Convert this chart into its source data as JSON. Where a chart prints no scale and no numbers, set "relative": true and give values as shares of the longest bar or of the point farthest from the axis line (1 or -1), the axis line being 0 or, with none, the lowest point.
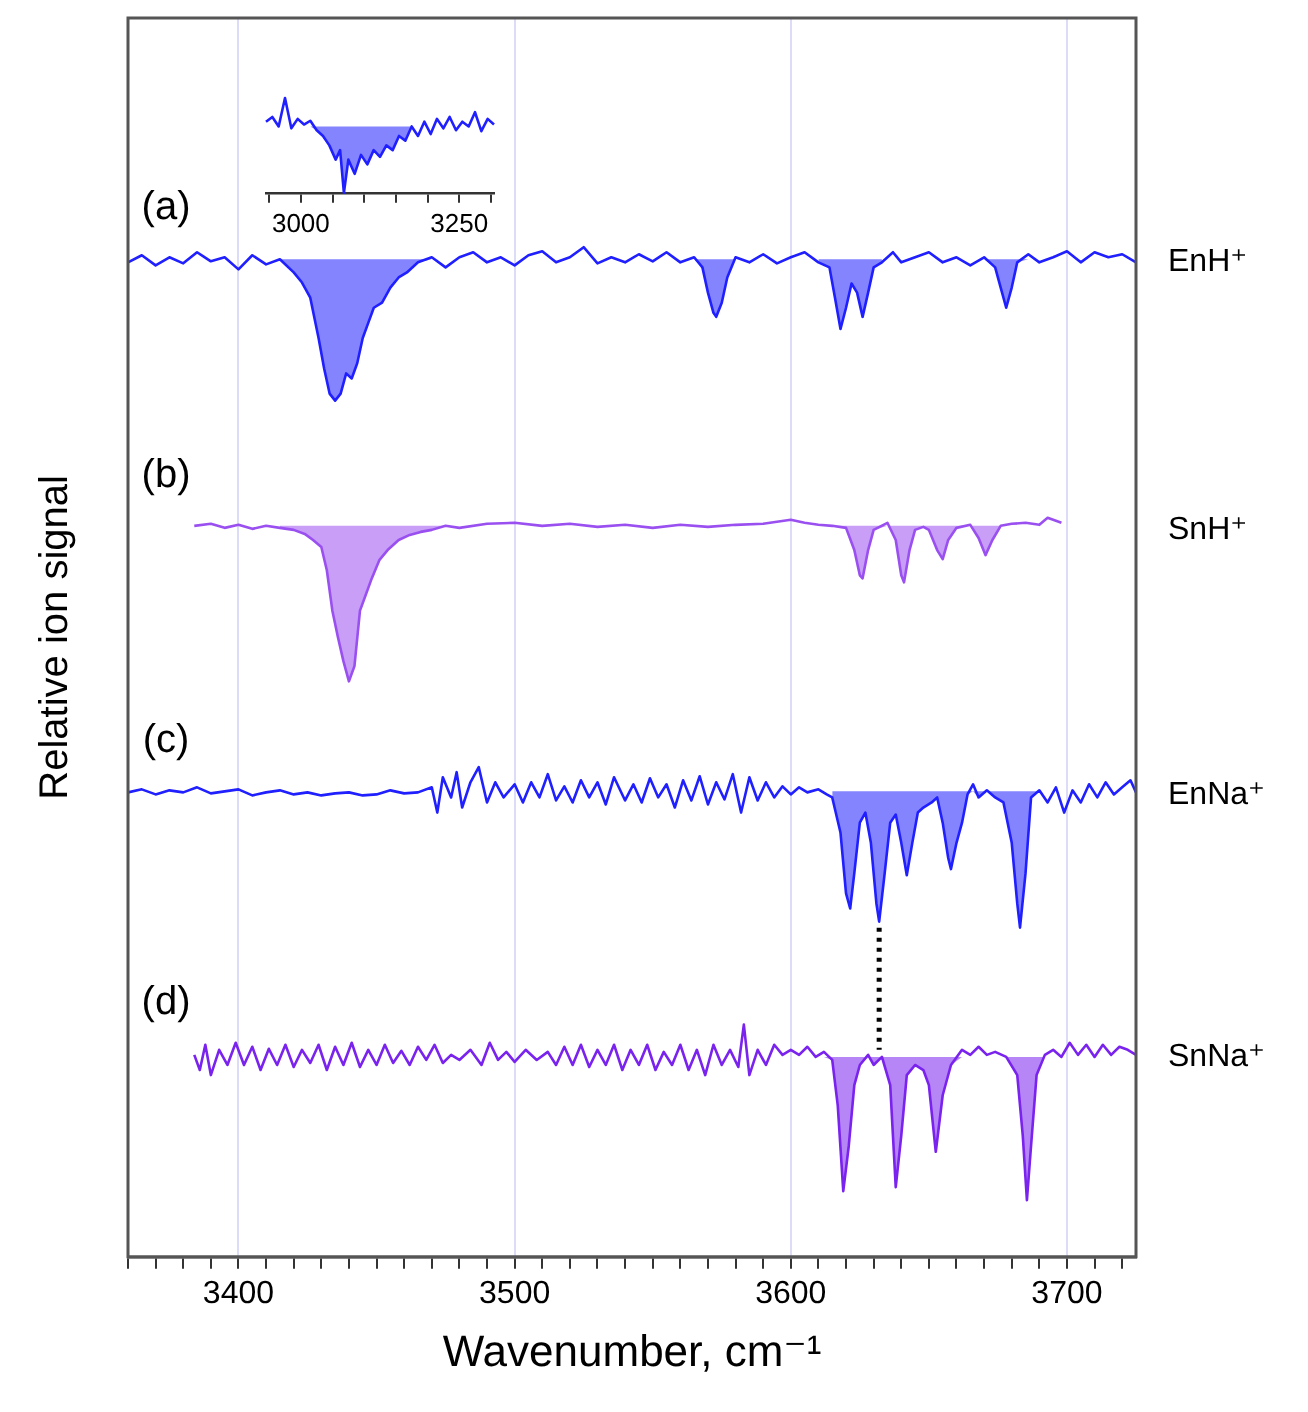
{
  "chart_data": [
    {
      "type": "line",
      "relative": true,
      "xlabel": "Wavenumber, cm⁻¹",
      "ylabel": "Relative ion signal",
      "xlim": [
        3360,
        3725
      ],
      "xticks": [
        {
          "value": 3360,
          "label": null
        },
        {
          "value": 3370,
          "label": null
        },
        {
          "value": 3380,
          "label": null
        },
        {
          "value": 3390,
          "label": null
        },
        3400,
        {
          "value": 3410,
          "label": null
        },
        {
          "value": 3420,
          "label": null
        },
        {
          "value": 3430,
          "label": null
        },
        {
          "value": 3440,
          "label": null
        },
        {
          "value": 3450,
          "label": null
        },
        {
          "value": 3460,
          "label": null
        },
        {
          "value": 3470,
          "label": null
        },
        {
          "value": 3480,
          "label": null
        },
        {
          "value": 3490,
          "label": null
        },
        3500,
        {
          "value": 3510,
          "label": null
        },
        {
          "value": 3520,
          "label": null
        },
        {
          "value": 3530,
          "label": null
        },
        {
          "value": 3540,
          "label": null
        },
        {
          "value": 3550,
          "label": null
        },
        {
          "value": 3560,
          "label": null
        },
        {
          "value": 3570,
          "label": null
        },
        {
          "value": 3580,
          "label": null
        },
        {
          "value": 3590,
          "label": null
        },
        3600,
        {
          "value": 3610,
          "label": null
        },
        {
          "value": 3620,
          "label": null
        },
        {
          "value": 3630,
          "label": null
        },
        {
          "value": 3640,
          "label": null
        },
        {
          "value": 3650,
          "label": null
        },
        {
          "value": 3660,
          "label": null
        },
        {
          "value": 3670,
          "label": null
        },
        {
          "value": 3680,
          "label": null
        },
        {
          "value": 3690,
          "label": null
        },
        3700,
        {
          "value": 3710,
          "label": null
        },
        {
          "value": 3720,
          "label": null
        }
      ],
      "grid": "x",
      "legend": false,
      "marker": "none",
      "annotations": [
        "(a)",
        "(b)",
        "(c)",
        "(d)"
      ],
      "series": [
        {
          "name": "EnH⁺",
          "type": "line",
          "color": "#1f1fff",
          "x": [
            3360,
            3365,
            3370,
            3375,
            3380,
            3385,
            3390,
            3395,
            3400,
            3405,
            3410,
            3415,
            3420,
            3423,
            3426,
            3429,
            3431,
            3433,
            3435,
            3437,
            3439,
            3441,
            3443,
            3445,
            3447,
            3449,
            3452,
            3455,
            3458,
            3461,
            3465,
            3470,
            3475,
            3480,
            3485,
            3490,
            3495,
            3500,
            3505,
            3510,
            3515,
            3520,
            3525,
            3530,
            3535,
            3540,
            3545,
            3550,
            3555,
            3560,
            3565,
            3568,
            3570,
            3572,
            3573,
            3575,
            3577,
            3580,
            3585,
            3590,
            3595,
            3600,
            3605,
            3610,
            3614,
            3616,
            3618,
            3620,
            3622,
            3624,
            3626,
            3628,
            3630,
            3633,
            3637,
            3640,
            3645,
            3650,
            3655,
            3660,
            3665,
            3670,
            3674,
            3676,
            3678,
            3680,
            3682,
            3686,
            3690,
            3695,
            3700,
            3705,
            3710,
            3715,
            3720,
            3725
          ],
          "values": [
            0.985,
            0.992,
            0.982,
            0.99,
            0.984,
            0.995,
            0.986,
            0.99,
            0.978,
            0.992,
            0.983,
            0.988,
            0.975,
            0.965,
            0.95,
            0.91,
            0.88,
            0.855,
            0.848,
            0.855,
            0.875,
            0.87,
            0.885,
            0.91,
            0.925,
            0.94,
            0.945,
            0.96,
            0.97,
            0.975,
            0.985,
            0.99,
            0.98,
            0.99,
            0.995,
            0.985,
            0.99,
            0.982,
            0.992,
            0.996,
            0.985,
            0.99,
            1.0,
            0.984,
            0.99,
            0.985,
            0.993,
            0.986,
            0.995,
            0.985,
            0.99,
            0.98,
            0.955,
            0.935,
            0.931,
            0.945,
            0.97,
            0.99,
            0.985,
            0.993,
            0.984,
            0.99,
            0.995,
            0.985,
            0.98,
            0.95,
            0.919,
            0.94,
            0.964,
            0.955,
            0.931,
            0.955,
            0.98,
            0.985,
            0.995,
            0.985,
            0.99,
            0.995,
            0.985,
            0.99,
            0.982,
            0.99,
            0.98,
            0.96,
            0.94,
            0.96,
            0.985,
            0.993,
            0.985,
            0.99,
            0.996,
            0.985,
            0.995,
            0.99,
            0.993,
            0.985
          ],
          "lower": [
            null,
            null,
            null,
            null,
            null,
            null,
            null,
            null,
            null,
            null,
            null,
            0.988,
            0.975,
            0.965,
            0.95,
            0.91,
            0.88,
            0.855,
            0.848,
            0.855,
            0.875,
            0.87,
            0.885,
            0.91,
            0.925,
            0.94,
            0.945,
            0.96,
            0.97,
            0.975,
            0.985,
            0.988,
            null,
            null,
            null,
            null,
            null,
            null,
            null,
            null,
            null,
            null,
            null,
            null,
            null,
            null,
            null,
            null,
            null,
            null,
            0.988,
            0.98,
            0.955,
            0.935,
            0.931,
            0.945,
            0.97,
            0.988,
            null,
            null,
            null,
            null,
            null,
            0.985,
            0.98,
            0.95,
            0.919,
            0.94,
            0.964,
            0.955,
            0.931,
            0.955,
            0.98,
            0.985,
            null,
            null,
            null,
            null,
            null,
            null,
            null,
            0.988,
            0.98,
            0.96,
            0.94,
            0.96,
            0.985,
            0.988,
            null,
            null,
            null,
            null,
            null,
            null,
            null,
            null
          ],
          "upper": [
            null,
            null,
            null,
            null,
            null,
            null,
            null,
            null,
            null,
            null,
            null,
            0.988,
            0.988,
            0.988,
            0.988,
            0.988,
            0.988,
            0.988,
            0.988,
            0.988,
            0.988,
            0.988,
            0.988,
            0.988,
            0.988,
            0.988,
            0.988,
            0.988,
            0.988,
            0.988,
            0.988,
            0.988,
            null,
            null,
            null,
            null,
            null,
            null,
            null,
            null,
            null,
            null,
            null,
            null,
            null,
            null,
            null,
            null,
            null,
            null,
            0.988,
            0.988,
            0.988,
            0.988,
            0.988,
            0.988,
            0.988,
            0.988,
            null,
            null,
            null,
            null,
            null,
            0.988,
            0.988,
            0.988,
            0.988,
            0.988,
            0.988,
            0.988,
            0.988,
            0.988,
            0.988,
            0.988,
            null,
            null,
            null,
            null,
            null,
            null,
            null,
            0.988,
            0.988,
            0.988,
            0.988,
            0.988,
            0.988,
            0.988,
            null,
            null,
            null,
            null,
            null,
            null,
            null,
            null
          ]
        },
        {
          "name": "SnH⁺",
          "type": "line",
          "color": "#9a4ff0",
          "x": [
            3384,
            3390,
            3395,
            3400,
            3405,
            3410,
            3415,
            3420,
            3424,
            3427,
            3430,
            3432,
            3434,
            3436,
            3438,
            3440,
            3442,
            3444,
            3446,
            3448,
            3451,
            3454,
            3458,
            3462,
            3466,
            3470,
            3475,
            3480,
            3490,
            3500,
            3510,
            3520,
            3530,
            3540,
            3550,
            3560,
            3570,
            3580,
            3590,
            3600,
            3605,
            3610,
            3615,
            3620,
            3623,
            3625,
            3626,
            3628,
            3630,
            3635,
            3638,
            3640,
            3641,
            3643,
            3645,
            3648,
            3650,
            3653,
            3655,
            3657,
            3660,
            3665,
            3668,
            3670.5,
            3673,
            3676,
            3680,
            3685,
            3690,
            3693,
            3698
          ],
          "values": [
            0.724,
            0.726,
            0.722,
            0.725,
            0.721,
            0.724,
            0.722,
            0.72,
            0.716,
            0.71,
            0.703,
            0.68,
            0.64,
            0.614,
            0.59,
            0.57,
            0.585,
            0.64,
            0.655,
            0.67,
            0.69,
            0.7,
            0.71,
            0.715,
            0.718,
            0.72,
            0.724,
            0.722,
            0.726,
            0.727,
            0.724,
            0.726,
            0.723,
            0.725,
            0.722,
            0.725,
            0.723,
            0.725,
            0.726,
            0.73,
            0.727,
            0.725,
            0.724,
            0.722,
            0.7,
            0.675,
            0.672,
            0.7,
            0.72,
            0.727,
            0.71,
            0.675,
            0.668,
            0.7,
            0.72,
            0.723,
            0.72,
            0.7,
            0.691,
            0.71,
            0.722,
            0.725,
            0.712,
            0.695,
            0.71,
            0.724,
            0.726,
            0.727,
            0.725,
            0.732,
            0.727
          ],
          "lower": [
            null,
            null,
            null,
            null,
            null,
            null,
            0.722,
            0.72,
            0.716,
            0.71,
            0.703,
            0.68,
            0.64,
            0.614,
            0.59,
            0.57,
            0.585,
            0.64,
            0.655,
            0.67,
            0.69,
            0.7,
            0.71,
            0.715,
            0.718,
            0.72,
            0.724,
            null,
            null,
            null,
            null,
            null,
            null,
            null,
            null,
            null,
            null,
            null,
            null,
            null,
            null,
            null,
            0.724,
            0.722,
            0.7,
            0.675,
            0.672,
            0.7,
            0.72,
            0.724,
            0.71,
            0.675,
            0.668,
            0.7,
            0.72,
            0.723,
            0.72,
            0.7,
            0.691,
            0.71,
            0.722,
            0.724,
            0.712,
            0.695,
            0.71,
            0.724,
            null,
            null,
            null,
            null,
            null
          ],
          "upper": [
            null,
            null,
            null,
            null,
            null,
            null,
            0.724,
            0.724,
            0.724,
            0.724,
            0.724,
            0.724,
            0.724,
            0.724,
            0.724,
            0.724,
            0.724,
            0.724,
            0.724,
            0.724,
            0.724,
            0.724,
            0.724,
            0.724,
            0.724,
            0.724,
            0.724,
            null,
            null,
            null,
            null,
            null,
            null,
            null,
            null,
            null,
            null,
            null,
            null,
            null,
            null,
            null,
            0.724,
            0.724,
            0.724,
            0.724,
            0.724,
            0.724,
            0.724,
            0.724,
            0.724,
            0.724,
            0.724,
            0.724,
            0.724,
            0.724,
            0.724,
            0.724,
            0.724,
            0.724,
            0.724,
            0.724,
            0.724,
            0.724,
            0.724,
            0.724,
            null,
            null,
            null,
            null,
            null
          ]
        },
        {
          "name": "EnNa⁺",
          "type": "line",
          "color": "#1f1fff",
          "x": [
            3360,
            3365,
            3370,
            3375,
            3380,
            3385,
            3390,
            3395,
            3400,
            3405,
            3410,
            3415,
            3420,
            3425,
            3430,
            3435,
            3440,
            3445,
            3450,
            3455,
            3460,
            3465,
            3470,
            3472,
            3474,
            3477,
            3479,
            3481,
            3484,
            3487,
            3490,
            3493,
            3496,
            3500,
            3503,
            3506,
            3509,
            3512,
            3515,
            3518,
            3521,
            3524,
            3527,
            3530,
            3533,
            3536,
            3540,
            3543,
            3546,
            3549,
            3552,
            3555,
            3558,
            3561,
            3564,
            3567,
            3570,
            3573,
            3576,
            3579,
            3582,
            3585,
            3588,
            3591,
            3594,
            3597,
            3600,
            3603,
            3606,
            3610,
            3613,
            3615,
            3618,
            3620,
            3621.5,
            3623,
            3625,
            3627,
            3629,
            3631,
            3632,
            3634,
            3636,
            3638,
            3640,
            3642,
            3644,
            3646,
            3648,
            3651,
            3653,
            3655,
            3657,
            3658,
            3660,
            3662,
            3664,
            3666,
            3668,
            3671,
            3674,
            3677,
            3680,
            3682,
            3683,
            3685,
            3687,
            3690,
            3693,
            3696,
            3699,
            3702,
            3705,
            3708,
            3711,
            3714,
            3717,
            3720,
            3723,
            3725
          ],
          "values": [
            0.46,
            0.463,
            0.458,
            0.462,
            0.46,
            0.465,
            0.459,
            0.461,
            0.463,
            0.457,
            0.46,
            0.462,
            0.458,
            0.46,
            0.457,
            0.459,
            0.46,
            0.457,
            0.458,
            0.462,
            0.459,
            0.46,
            0.465,
            0.44,
            0.475,
            0.455,
            0.48,
            0.445,
            0.47,
            0.485,
            0.45,
            0.47,
            0.455,
            0.468,
            0.45,
            0.47,
            0.455,
            0.478,
            0.452,
            0.466,
            0.45,
            0.472,
            0.455,
            0.47,
            0.448,
            0.475,
            0.452,
            0.468,
            0.45,
            0.474,
            0.455,
            0.468,
            0.445,
            0.472,
            0.452,
            0.476,
            0.448,
            0.47,
            0.453,
            0.478,
            0.44,
            0.475,
            0.452,
            0.47,
            0.455,
            0.466,
            0.458,
            0.465,
            0.46,
            0.463,
            0.458,
            0.455,
            0.42,
            0.36,
            0.345,
            0.38,
            0.43,
            0.44,
            0.41,
            0.35,
            0.332,
            0.38,
            0.43,
            0.438,
            0.41,
            0.378,
            0.41,
            0.44,
            0.445,
            0.45,
            0.455,
            0.43,
            0.395,
            0.384,
            0.41,
            0.43,
            0.458,
            0.468,
            0.455,
            0.462,
            0.455,
            0.45,
            0.41,
            0.35,
            0.326,
            0.38,
            0.455,
            0.462,
            0.45,
            0.465,
            0.44,
            0.462,
            0.45,
            0.468,
            0.455,
            0.47,
            0.458,
            0.465,
            0.472,
            0.46
          ],
          "lower": [
            null,
            null,
            null,
            null,
            null,
            null,
            null,
            null,
            null,
            null,
            null,
            null,
            null,
            null,
            null,
            null,
            null,
            null,
            null,
            null,
            null,
            null,
            null,
            null,
            null,
            null,
            null,
            null,
            null,
            null,
            null,
            null,
            null,
            null,
            null,
            null,
            null,
            null,
            null,
            null,
            null,
            null,
            null,
            null,
            null,
            null,
            null,
            null,
            null,
            null,
            null,
            null,
            null,
            null,
            null,
            null,
            null,
            null,
            null,
            null,
            null,
            null,
            null,
            null,
            null,
            null,
            null,
            null,
            null,
            null,
            null,
            0.455,
            0.42,
            0.36,
            0.345,
            0.38,
            0.43,
            0.44,
            0.41,
            0.35,
            0.332,
            0.38,
            0.43,
            0.438,
            0.41,
            0.378,
            0.41,
            0.44,
            0.445,
            0.45,
            0.455,
            0.43,
            0.395,
            0.384,
            0.41,
            0.43,
            0.458,
            0.461,
            0.455,
            0.461,
            0.455,
            0.45,
            0.41,
            0.35,
            0.326,
            0.38,
            0.455,
            0.461,
            null,
            null,
            null,
            null,
            null,
            null,
            null,
            null,
            null,
            null,
            null,
            null
          ],
          "upper": [
            null,
            null,
            null,
            null,
            null,
            null,
            null,
            null,
            null,
            null,
            null,
            null,
            null,
            null,
            null,
            null,
            null,
            null,
            null,
            null,
            null,
            null,
            null,
            null,
            null,
            null,
            null,
            null,
            null,
            null,
            null,
            null,
            null,
            null,
            null,
            null,
            null,
            null,
            null,
            null,
            null,
            null,
            null,
            null,
            null,
            null,
            null,
            null,
            null,
            null,
            null,
            null,
            null,
            null,
            null,
            null,
            null,
            null,
            null,
            null,
            null,
            null,
            null,
            null,
            null,
            null,
            null,
            null,
            null,
            null,
            null,
            0.461,
            0.461,
            0.461,
            0.461,
            0.461,
            0.461,
            0.461,
            0.461,
            0.461,
            0.461,
            0.461,
            0.461,
            0.461,
            0.461,
            0.461,
            0.461,
            0.461,
            0.461,
            0.461,
            0.461,
            0.461,
            0.461,
            0.461,
            0.461,
            0.461,
            0.461,
            0.461,
            0.461,
            0.461,
            0.461,
            0.461,
            0.461,
            0.461,
            0.461,
            0.461,
            0.461,
            0.461,
            null,
            null,
            null,
            null,
            null,
            null,
            null,
            null,
            null,
            null,
            null,
            null
          ]
        },
        {
          "name": "SnNa⁺",
          "type": "line",
          "color": "#7a22ee",
          "x": [
            3384,
            3386,
            3388,
            3390,
            3393,
            3396,
            3399,
            3402,
            3405,
            3408,
            3411,
            3414,
            3417,
            3420,
            3423,
            3426,
            3429,
            3432,
            3435,
            3438,
            3441,
            3444,
            3447,
            3450,
            3453,
            3456,
            3459,
            3462,
            3465,
            3468,
            3471,
            3474,
            3477,
            3480,
            3484,
            3488,
            3491,
            3494,
            3497,
            3500,
            3504,
            3508,
            3512,
            3515,
            3518,
            3521,
            3524,
            3527,
            3530,
            3533,
            3536,
            3539,
            3542,
            3545,
            3548,
            3551,
            3554,
            3557,
            3560,
            3563,
            3566,
            3569,
            3572,
            3575,
            3578,
            3581,
            3583,
            3585,
            3588,
            3591,
            3594,
            3597,
            3600,
            3603,
            3606,
            3609,
            3612,
            3615,
            3617,
            3619,
            3621,
            3623,
            3625,
            3628,
            3630,
            3633,
            3636,
            3638,
            3640,
            3642,
            3645,
            3648,
            3650,
            3652.5,
            3655,
            3658,
            3662,
            3665,
            3668,
            3671,
            3674,
            3678,
            3682,
            3684,
            3685.5,
            3687,
            3689,
            3692,
            3695,
            3698,
            3701,
            3704,
            3707,
            3710,
            3713,
            3716,
            3719,
            3722,
            3725
          ],
          "values": [
            0.2,
            0.185,
            0.21,
            0.18,
            0.205,
            0.19,
            0.212,
            0.19,
            0.208,
            0.185,
            0.206,
            0.19,
            0.21,
            0.188,
            0.205,
            0.192,
            0.21,
            0.185,
            0.208,
            0.19,
            0.212,
            0.188,
            0.205,
            0.19,
            0.21,
            0.192,
            0.204,
            0.19,
            0.208,
            0.195,
            0.21,
            0.192,
            0.2,
            0.195,
            0.205,
            0.19,
            0.212,
            0.195,
            0.203,
            0.193,
            0.205,
            0.195,
            0.203,
            0.19,
            0.208,
            0.19,
            0.21,
            0.188,
            0.205,
            0.19,
            0.21,
            0.185,
            0.205,
            0.19,
            0.21,
            0.185,
            0.203,
            0.19,
            0.21,
            0.185,
            0.205,
            0.18,
            0.21,
            0.19,
            0.205,
            0.188,
            0.23,
            0.18,
            0.205,
            0.19,
            0.21,
            0.2,
            0.205,
            0.2,
            0.208,
            0.198,
            0.203,
            0.195,
            0.15,
            0.065,
            0.11,
            0.17,
            0.19,
            0.2,
            0.19,
            0.198,
            0.17,
            0.069,
            0.12,
            0.18,
            0.19,
            0.185,
            0.17,
            0.104,
            0.16,
            0.19,
            0.205,
            0.2,
            0.208,
            0.2,
            0.203,
            0.198,
            0.18,
            0.12,
            0.056,
            0.11,
            0.18,
            0.2,
            0.205,
            0.198,
            0.212,
            0.2,
            0.21,
            0.198,
            0.21,
            0.2,
            0.208,
            0.205,
            0.2
          ],
          "lower": [
            null,
            null,
            null,
            null,
            null,
            null,
            null,
            null,
            null,
            null,
            null,
            null,
            null,
            null,
            null,
            null,
            null,
            null,
            null,
            null,
            null,
            null,
            null,
            null,
            null,
            null,
            null,
            null,
            null,
            null,
            null,
            null,
            null,
            null,
            null,
            null,
            null,
            null,
            null,
            null,
            null,
            null,
            null,
            null,
            null,
            null,
            null,
            null,
            null,
            null,
            null,
            null,
            null,
            null,
            null,
            null,
            null,
            null,
            null,
            null,
            null,
            null,
            null,
            null,
            null,
            null,
            null,
            null,
            null,
            null,
            null,
            null,
            null,
            null,
            null,
            null,
            0.198,
            0.195,
            0.15,
            0.065,
            0.11,
            0.17,
            0.19,
            0.198,
            0.19,
            0.198,
            0.17,
            0.069,
            0.12,
            0.18,
            0.19,
            0.185,
            0.17,
            0.104,
            0.16,
            0.19,
            0.198,
            null,
            null,
            null,
            null,
            0.198,
            0.18,
            0.12,
            0.056,
            0.11,
            0.18,
            0.198,
            null,
            null,
            null,
            null,
            null,
            null,
            null,
            null,
            null,
            null,
            null
          ],
          "upper": [
            null,
            null,
            null,
            null,
            null,
            null,
            null,
            null,
            null,
            null,
            null,
            null,
            null,
            null,
            null,
            null,
            null,
            null,
            null,
            null,
            null,
            null,
            null,
            null,
            null,
            null,
            null,
            null,
            null,
            null,
            null,
            null,
            null,
            null,
            null,
            null,
            null,
            null,
            null,
            null,
            null,
            null,
            null,
            null,
            null,
            null,
            null,
            null,
            null,
            null,
            null,
            null,
            null,
            null,
            null,
            null,
            null,
            null,
            null,
            null,
            null,
            null,
            null,
            null,
            null,
            null,
            null,
            null,
            null,
            null,
            null,
            null,
            null,
            null,
            null,
            null,
            0.198,
            0.198,
            0.198,
            0.198,
            0.198,
            0.198,
            0.198,
            0.198,
            0.198,
            0.198,
            0.198,
            0.198,
            0.198,
            0.198,
            0.198,
            0.198,
            0.198,
            0.198,
            0.198,
            0.198,
            0.198,
            null,
            null,
            null,
            null,
            0.198,
            0.198,
            0.198,
            0.198,
            0.198,
            0.198,
            0.198,
            null,
            null,
            null,
            null,
            null,
            null,
            null,
            null,
            null,
            null,
            null
          ]
        },
        {
          "type": "line",
          "color": "#000000",
          "line_style": "dotted",
          "x": [
            3632,
            3632
          ],
          "values": [
            0.326,
            0.205
          ]
        }
      ]
    },
    {
      "type": "line",
      "relative": true,
      "xlim": [
        2945,
        3305
      ],
      "marker": "none",
      "xticks": [
        {
          "value": 2950,
          "label": null
        },
        3000,
        {
          "value": 3050,
          "label": null
        },
        {
          "value": 3100,
          "label": null
        },
        {
          "value": 3150,
          "label": null
        },
        {
          "value": 3200,
          "label": null
        },
        3250,
        {
          "value": 3300,
          "label": null
        }
      ],
      "series": [
        {
          "type": "line",
          "color": "#1f1fff",
          "x": [
            2945,
            2955,
            2965,
            2975,
            2985,
            2995,
            3005,
            3015,
            3025,
            3035,
            3045,
            3055,
            3062,
            3068,
            3075,
            3085,
            3095,
            3105,
            3115,
            3125,
            3135,
            3145,
            3155,
            3165,
            3175,
            3185,
            3195,
            3205,
            3215,
            3225,
            3235,
            3245,
            3255,
            3265,
            3275,
            3285,
            3295,
            3305
          ],
          "values": [
            0.75,
            0.8,
            0.7,
            1.0,
            0.68,
            0.78,
            0.72,
            0.76,
            0.66,
            0.6,
            0.5,
            0.35,
            0.45,
            0.0,
            0.35,
            0.2,
            0.4,
            0.3,
            0.45,
            0.38,
            0.5,
            0.45,
            0.6,
            0.55,
            0.7,
            0.6,
            0.75,
            0.62,
            0.78,
            0.68,
            0.8,
            0.66,
            0.75,
            0.7,
            0.85,
            0.65,
            0.78,
            0.72
          ],
          "lower": [
            null,
            null,
            null,
            null,
            null,
            null,
            null,
            0.7,
            0.66,
            0.6,
            0.5,
            0.35,
            0.45,
            0.0,
            0.35,
            0.2,
            0.4,
            0.3,
            0.45,
            0.38,
            0.5,
            0.45,
            0.6,
            0.55,
            0.7,
            null,
            null,
            null,
            null,
            null,
            null,
            null,
            null,
            null,
            null,
            null,
            null,
            null
          ],
          "upper": [
            null,
            null,
            null,
            null,
            null,
            null,
            null,
            0.7,
            0.7,
            0.7,
            0.7,
            0.7,
            0.7,
            0.7,
            0.7,
            0.7,
            0.7,
            0.7,
            0.7,
            0.7,
            0.7,
            0.7,
            0.7,
            0.7,
            0.7,
            null,
            null,
            null,
            null,
            null,
            null,
            null,
            null,
            null,
            null,
            null,
            null,
            null
          ]
        }
      ]
    }
  ]
}
